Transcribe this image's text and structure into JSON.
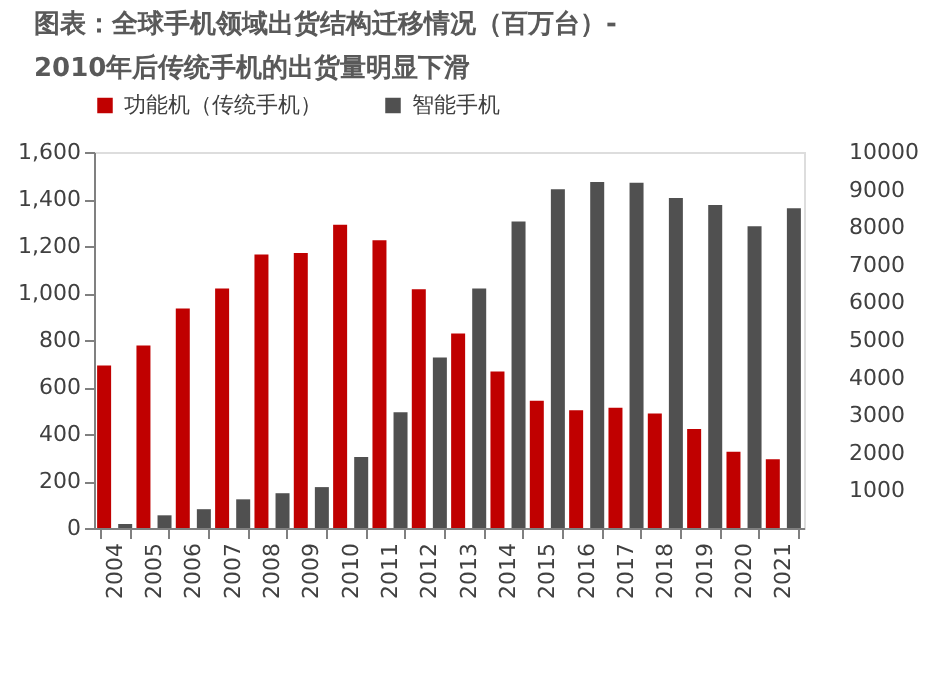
{
  "chart_data": {
    "type": "bar",
    "title": "图表：全球手机领域出货结构迁移情况（百万台）-\n2010年后传统手机的出货量明显下滑",
    "categories": [
      "2004",
      "2005",
      "2006",
      "2007",
      "2008",
      "2009",
      "2010",
      "2011",
      "2012",
      "2013",
      "2014",
      "2015",
      "2016",
      "2017",
      "2018",
      "2019",
      "2020",
      "2021"
    ],
    "series": [
      {
        "name": "功能机（传统手机）",
        "color": "#c00000",
        "values": [
          692,
          777,
          934,
          1019,
          1164,
          1170,
          1290,
          1224,
          1016,
          828,
          666,
          541,
          501,
          512,
          487,
          421,
          325,
          293
        ]
      },
      {
        "name": "智能手机",
        "color": "#505050",
        "values": [
          17,
          54,
          80,
          122,
          148,
          174,
          302,
          493,
          726,
          1019,
          1304,
          1441,
          1472,
          1469,
          1404,
          1375,
          1284,
          1361
        ]
      }
    ],
    "ylim": [
      0,
      1600
    ],
    "yticks": [
      {
        "value": 0,
        "label": "0"
      },
      {
        "value": 200,
        "label": "200"
      },
      {
        "value": 400,
        "label": "400"
      },
      {
        "value": 600,
        "label": "600"
      },
      {
        "value": 800,
        "label": "800"
      },
      {
        "value": 1000,
        "label": "1,000"
      },
      {
        "value": 1200,
        "label": "1,200"
      },
      {
        "value": 1400,
        "label": "1,400"
      },
      {
        "value": 1600,
        "label": "1,600"
      }
    ],
    "y2lim": [
      0,
      10000
    ],
    "y2ticks": [
      1000,
      2000,
      3000,
      4000,
      5000,
      6000,
      7000,
      8000,
      9000,
      10000
    ],
    "grid": false,
    "legend": "top"
  }
}
